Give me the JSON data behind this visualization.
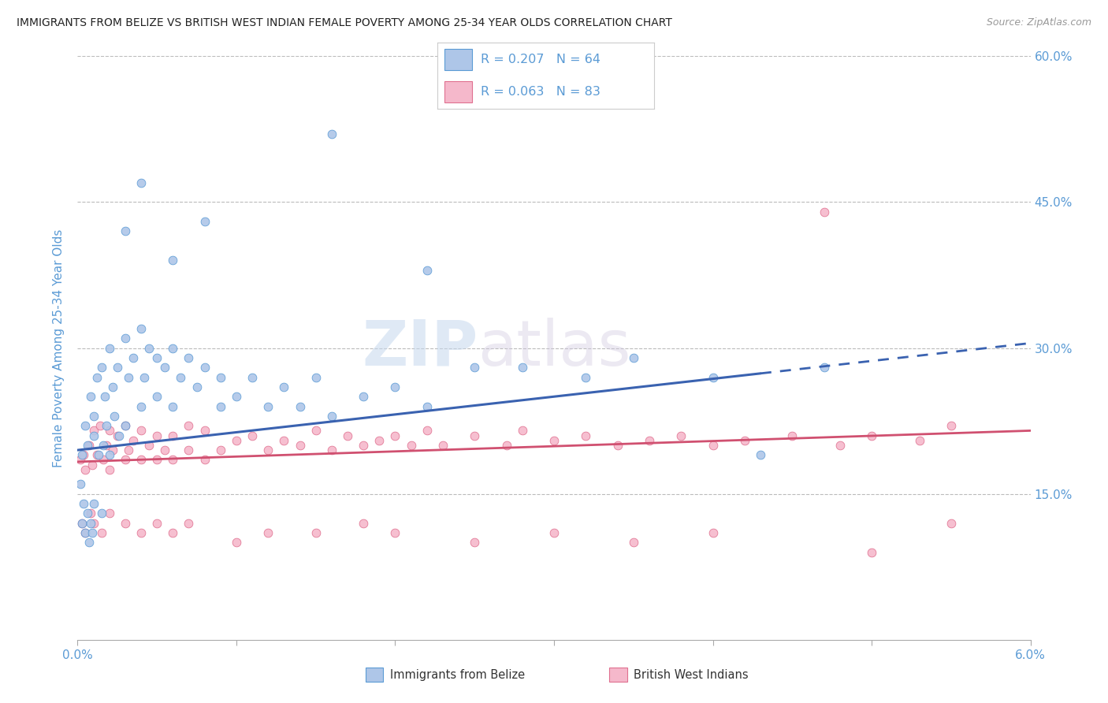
{
  "title": "IMMIGRANTS FROM BELIZE VS BRITISH WEST INDIAN FEMALE POVERTY AMONG 25-34 YEAR OLDS CORRELATION CHART",
  "source": "Source: ZipAtlas.com",
  "ylabel_label": "Female Poverty Among 25-34 Year Olds",
  "watermark_zip": "ZIP",
  "watermark_atlas": "atlas",
  "legend_label1": "Immigrants from Belize",
  "legend_label2": "British West Indians",
  "r1": 0.207,
  "n1": 64,
  "r2": 0.063,
  "n2": 83,
  "color1": "#aec6e8",
  "color2": "#f5b8cb",
  "color1_edge": "#5b9bd5",
  "color2_edge": "#e07090",
  "line1_color": "#3a62b0",
  "line2_color": "#d05070",
  "tick_color": "#5b9bd5",
  "source_color": "#999999",
  "title_color": "#222222",
  "x_min": 0.0,
  "x_max": 0.06,
  "y_min": 0.0,
  "y_max": 0.6,
  "yticks": [
    0.15,
    0.3,
    0.45,
    0.6
  ],
  "ytick_labels": [
    "15.0%",
    "30.0%",
    "45.0%",
    "60.0%"
  ],
  "line1_x0": 0.0,
  "line1_y0": 0.195,
  "line1_x1": 0.06,
  "line1_y1": 0.305,
  "line1_dash_start": 0.043,
  "line2_x0": 0.0,
  "line2_y0": 0.183,
  "line2_x1": 0.06,
  "line2_y1": 0.215,
  "scatter1_x": [
    0.0003,
    0.0005,
    0.0006,
    0.0008,
    0.001,
    0.001,
    0.0012,
    0.0013,
    0.0015,
    0.0016,
    0.0017,
    0.0018,
    0.002,
    0.002,
    0.0022,
    0.0023,
    0.0025,
    0.0026,
    0.003,
    0.003,
    0.0032,
    0.0035,
    0.004,
    0.004,
    0.0042,
    0.0045,
    0.005,
    0.005,
    0.0055,
    0.006,
    0.006,
    0.0065,
    0.007,
    0.0075,
    0.008,
    0.009,
    0.009,
    0.01,
    0.011,
    0.012,
    0.013,
    0.014,
    0.015,
    0.016,
    0.018,
    0.02,
    0.022,
    0.025,
    0.028,
    0.032,
    0.035,
    0.04,
    0.043,
    0.047,
    0.0002,
    0.0003,
    0.0004,
    0.0005,
    0.0006,
    0.0007,
    0.0008,
    0.0009,
    0.001,
    0.0015
  ],
  "scatter1_y": [
    0.19,
    0.22,
    0.2,
    0.25,
    0.23,
    0.21,
    0.27,
    0.19,
    0.28,
    0.2,
    0.25,
    0.22,
    0.3,
    0.19,
    0.26,
    0.23,
    0.28,
    0.21,
    0.31,
    0.22,
    0.27,
    0.29,
    0.32,
    0.24,
    0.27,
    0.3,
    0.29,
    0.25,
    0.28,
    0.3,
    0.24,
    0.27,
    0.29,
    0.26,
    0.28,
    0.27,
    0.24,
    0.25,
    0.27,
    0.24,
    0.26,
    0.24,
    0.27,
    0.23,
    0.25,
    0.26,
    0.24,
    0.28,
    0.28,
    0.27,
    0.29,
    0.27,
    0.19,
    0.28,
    0.16,
    0.12,
    0.14,
    0.11,
    0.13,
    0.1,
    0.12,
    0.11,
    0.14,
    0.13
  ],
  "scatter1_outliers_x": [
    0.016,
    0.008,
    0.004,
    0.022,
    0.003,
    0.006
  ],
  "scatter1_outliers_y": [
    0.52,
    0.43,
    0.47,
    0.38,
    0.42,
    0.39
  ],
  "scatter2_x": [
    0.0002,
    0.0004,
    0.0005,
    0.0007,
    0.0009,
    0.001,
    0.0012,
    0.0014,
    0.0016,
    0.0018,
    0.002,
    0.002,
    0.0022,
    0.0025,
    0.003,
    0.003,
    0.0032,
    0.0035,
    0.004,
    0.004,
    0.0045,
    0.005,
    0.005,
    0.0055,
    0.006,
    0.006,
    0.007,
    0.007,
    0.008,
    0.008,
    0.009,
    0.01,
    0.011,
    0.012,
    0.013,
    0.014,
    0.015,
    0.016,
    0.017,
    0.018,
    0.019,
    0.02,
    0.021,
    0.022,
    0.023,
    0.025,
    0.027,
    0.028,
    0.03,
    0.032,
    0.034,
    0.036,
    0.038,
    0.04,
    0.042,
    0.045,
    0.048,
    0.05,
    0.053,
    0.055,
    0.0003,
    0.0005,
    0.0008,
    0.001,
    0.0015,
    0.002,
    0.003,
    0.004,
    0.005,
    0.006,
    0.007,
    0.01,
    0.012,
    0.015,
    0.018,
    0.02,
    0.025,
    0.03,
    0.035,
    0.04,
    0.05,
    0.055
  ],
  "scatter2_y": [
    0.185,
    0.19,
    0.175,
    0.2,
    0.18,
    0.215,
    0.19,
    0.22,
    0.185,
    0.2,
    0.215,
    0.175,
    0.195,
    0.21,
    0.22,
    0.185,
    0.195,
    0.205,
    0.215,
    0.185,
    0.2,
    0.21,
    0.185,
    0.195,
    0.21,
    0.185,
    0.22,
    0.195,
    0.215,
    0.185,
    0.195,
    0.205,
    0.21,
    0.195,
    0.205,
    0.2,
    0.215,
    0.195,
    0.21,
    0.2,
    0.205,
    0.21,
    0.2,
    0.215,
    0.2,
    0.21,
    0.2,
    0.215,
    0.205,
    0.21,
    0.2,
    0.205,
    0.21,
    0.2,
    0.205,
    0.21,
    0.2,
    0.21,
    0.205,
    0.22,
    0.12,
    0.11,
    0.13,
    0.12,
    0.11,
    0.13,
    0.12,
    0.11,
    0.12,
    0.11,
    0.12,
    0.1,
    0.11,
    0.11,
    0.12,
    0.11,
    0.1,
    0.11,
    0.1,
    0.11,
    0.09,
    0.12
  ],
  "scatter2_outlier_x": [
    0.047
  ],
  "scatter2_outlier_y": [
    0.44
  ]
}
